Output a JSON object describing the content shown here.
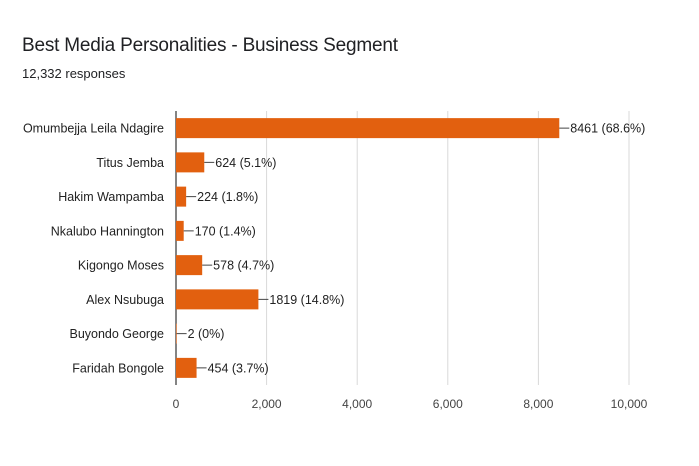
{
  "header": {
    "title": "Best Media Personalities - Business Segment",
    "responses": "12,332 responses"
  },
  "colors": {
    "bar": "#e2600f",
    "axis": "#333333",
    "grid": "#d9d9d9",
    "leader": "#444444"
  },
  "chart_data": {
    "type": "bar",
    "orientation": "horizontal",
    "title": "Best Media Personalities - Business Segment",
    "subtitle": "12,332 responses",
    "categories": [
      "Omumbejja Leila Ndagire",
      "Titus Jemba",
      "Hakim Wampamba",
      "Nkalubo Hannington",
      "Kigongo Moses",
      "Alex Nsubuga",
      "Buyondo George",
      "Faridah Bongole"
    ],
    "values": [
      8461,
      624,
      224,
      170,
      578,
      1819,
      2,
      454
    ],
    "data_labels": [
      "8461 (68.6%)",
      "624 (5.1%)",
      "224 (1.8%)",
      "170 (1.4%)",
      "578 (4.7%)",
      "1819 (14.8%)",
      "2 (0%)",
      "454 (3.7%)"
    ],
    "xlim": [
      0,
      10000
    ],
    "xticks": [
      0,
      2000,
      4000,
      6000,
      8000,
      10000
    ],
    "xtick_labels": [
      "0",
      "2,000",
      "4,000",
      "6,000",
      "8,000",
      "10,000"
    ],
    "grid": true,
    "legend": "none"
  }
}
